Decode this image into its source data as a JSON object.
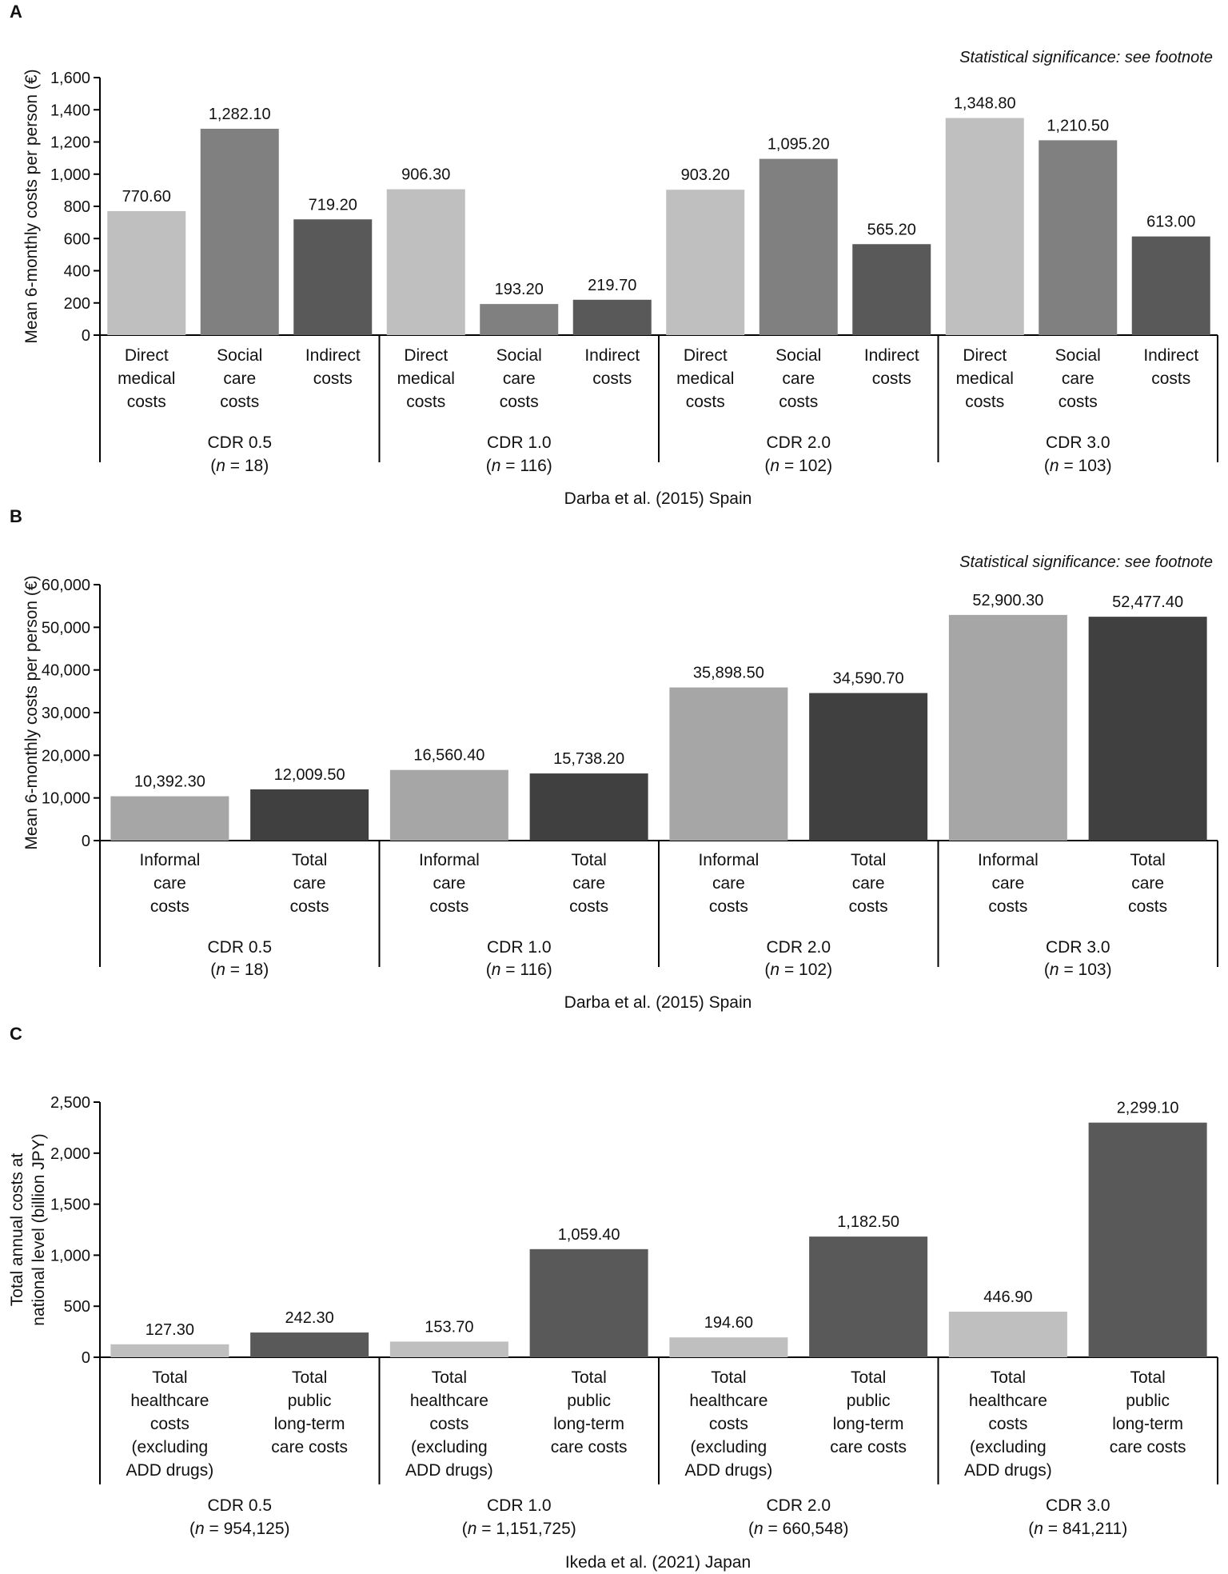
{
  "chart_data": [
    {
      "panel": "A",
      "type": "bar",
      "note": "Statistical significance: see footnote",
      "ylabel": "Mean 6-monthly costs per person (€)",
      "ylim": [
        0,
        1600
      ],
      "yticks": [
        "0",
        "200",
        "400",
        "600",
        "800",
        "1,000",
        "1,200",
        "1,400",
        "1,600"
      ],
      "ytick_values": [
        0,
        200,
        400,
        600,
        800,
        1000,
        1200,
        1400,
        1600
      ],
      "source": "Darba et al. (2015) Spain",
      "groups": [
        {
          "label": "CDR 0.5",
          "n": "18",
          "bars": [
            {
              "category": [
                "Direct",
                "medical",
                "costs"
              ],
              "value": 770.6,
              "label": "770.60",
              "color": "#bfbfbf"
            },
            {
              "category": [
                "Social",
                "care",
                "costs"
              ],
              "value": 1282.1,
              "label": "1,282.10",
              "color": "#808080"
            },
            {
              "category": [
                "Indirect",
                "costs"
              ],
              "value": 719.2,
              "label": "719.20",
              "color": "#595959"
            }
          ]
        },
        {
          "label": "CDR 1.0",
          "n": "116",
          "bars": [
            {
              "category": [
                "Direct",
                "medical",
                "costs"
              ],
              "value": 906.3,
              "label": "906.30",
              "color": "#bfbfbf"
            },
            {
              "category": [
                "Social",
                "care",
                "costs"
              ],
              "value": 193.2,
              "label": "193.20",
              "color": "#808080"
            },
            {
              "category": [
                "Indirect",
                "costs"
              ],
              "value": 219.7,
              "label": "219.70",
              "color": "#595959"
            }
          ]
        },
        {
          "label": "CDR 2.0",
          "n": "102",
          "bars": [
            {
              "category": [
                "Direct",
                "medical",
                "costs"
              ],
              "value": 903.2,
              "label": "903.20",
              "color": "#bfbfbf"
            },
            {
              "category": [
                "Social",
                "care",
                "costs"
              ],
              "value": 1095.2,
              "label": "1,095.20",
              "color": "#808080"
            },
            {
              "category": [
                "Indirect",
                "costs"
              ],
              "value": 565.2,
              "label": "565.20",
              "color": "#595959"
            }
          ]
        },
        {
          "label": "CDR 3.0",
          "n": "103",
          "bars": [
            {
              "category": [
                "Direct",
                "medical",
                "costs"
              ],
              "value": 1348.8,
              "label": "1,348.80",
              "color": "#bfbfbf"
            },
            {
              "category": [
                "Social",
                "care",
                "costs"
              ],
              "value": 1210.5,
              "label": "1,210.50",
              "color": "#808080"
            },
            {
              "category": [
                "Indirect",
                "costs"
              ],
              "value": 613.0,
              "label": "613.00",
              "color": "#595959"
            }
          ]
        }
      ]
    },
    {
      "panel": "B",
      "type": "bar",
      "note": "Statistical significance: see footnote",
      "ylabel": "Mean 6-monthly costs per person (€)",
      "ylim": [
        0,
        60000
      ],
      "yticks": [
        "0",
        "10,000",
        "20,000",
        "30,000",
        "40,000",
        "50,000",
        "60,000"
      ],
      "ytick_values": [
        0,
        10000,
        20000,
        30000,
        40000,
        50000,
        60000
      ],
      "source": "Darba et al. (2015) Spain",
      "groups": [
        {
          "label": "CDR 0.5",
          "n": "18",
          "bars": [
            {
              "category": [
                "Informal",
                "care",
                "costs"
              ],
              "value": 10392.3,
              "label": "10,392.30",
              "color": "#a6a6a6"
            },
            {
              "category": [
                "Total",
                "care",
                "costs"
              ],
              "value": 12009.5,
              "label": "12,009.50",
              "color": "#404040"
            }
          ]
        },
        {
          "label": "CDR 1.0",
          "n": "116",
          "bars": [
            {
              "category": [
                "Informal",
                "care",
                "costs"
              ],
              "value": 16560.4,
              "label": "16,560.40",
              "color": "#a6a6a6"
            },
            {
              "category": [
                "Total",
                "care",
                "costs"
              ],
              "value": 15738.2,
              "label": "15,738.20",
              "color": "#404040"
            }
          ]
        },
        {
          "label": "CDR 2.0",
          "n": "102",
          "bars": [
            {
              "category": [
                "Informal",
                "care",
                "costs"
              ],
              "value": 35898.5,
              "label": "35,898.50",
              "color": "#a6a6a6"
            },
            {
              "category": [
                "Total",
                "care",
                "costs"
              ],
              "value": 34590.7,
              "label": "34,590.70",
              "color": "#404040"
            }
          ]
        },
        {
          "label": "CDR 3.0",
          "n": "103",
          "bars": [
            {
              "category": [
                "Informal",
                "care",
                "costs"
              ],
              "value": 52900.3,
              "label": "52,900.30",
              "color": "#a6a6a6"
            },
            {
              "category": [
                "Total",
                "care",
                "costs"
              ],
              "value": 52477.4,
              "label": "52,477.40",
              "color": "#404040"
            }
          ]
        }
      ]
    },
    {
      "panel": "C",
      "type": "bar",
      "note": "",
      "ylabel": [
        "Total annual costs at",
        "national level (billion JPY)"
      ],
      "ylim": [
        0,
        2500
      ],
      "yticks": [
        "0",
        "500",
        "1,000",
        "1,500",
        "2,000",
        "2,500"
      ],
      "ytick_values": [
        0,
        500,
        1000,
        1500,
        2000,
        2500
      ],
      "source": "Ikeda et al. (2021) Japan",
      "groups": [
        {
          "label": "CDR 0.5",
          "n": "954,125",
          "bars": [
            {
              "category": [
                "Total",
                "healthcare",
                "costs",
                "(excluding",
                "ADD drugs)"
              ],
              "value": 127.3,
              "label": "127.30",
              "color": "#bfbfbf"
            },
            {
              "category": [
                "Total",
                "public",
                "long-term",
                "care costs"
              ],
              "value": 242.3,
              "label": "242.30",
              "color": "#595959"
            }
          ]
        },
        {
          "label": "CDR 1.0",
          "n": "1,151,725",
          "bars": [
            {
              "category": [
                "Total",
                "healthcare",
                "costs",
                "(excluding",
                "ADD drugs)"
              ],
              "value": 153.7,
              "label": "153.70",
              "color": "#bfbfbf"
            },
            {
              "category": [
                "Total",
                "public",
                "long-term",
                "care costs"
              ],
              "value": 1059.4,
              "label": "1,059.40",
              "color": "#595959"
            }
          ]
        },
        {
          "label": "CDR 2.0",
          "n": "660,548",
          "bars": [
            {
              "category": [
                "Total",
                "healthcare",
                "costs",
                "(excluding",
                "ADD drugs)"
              ],
              "value": 194.6,
              "label": "194.60",
              "color": "#bfbfbf"
            },
            {
              "category": [
                "Total",
                "public",
                "long-term",
                "care costs"
              ],
              "value": 1182.5,
              "label": "1,182.50",
              "color": "#595959"
            }
          ]
        },
        {
          "label": "CDR 3.0",
          "n": "841,211",
          "bars": [
            {
              "category": [
                "Total",
                "healthcare",
                "costs",
                "(excluding",
                "ADD drugs)"
              ],
              "value": 446.9,
              "label": "446.90",
              "color": "#bfbfbf"
            },
            {
              "category": [
                "Total",
                "public",
                "long-term",
                "care costs"
              ],
              "value": 2299.1,
              "label": "2,299.10",
              "color": "#595959"
            }
          ]
        }
      ]
    }
  ]
}
